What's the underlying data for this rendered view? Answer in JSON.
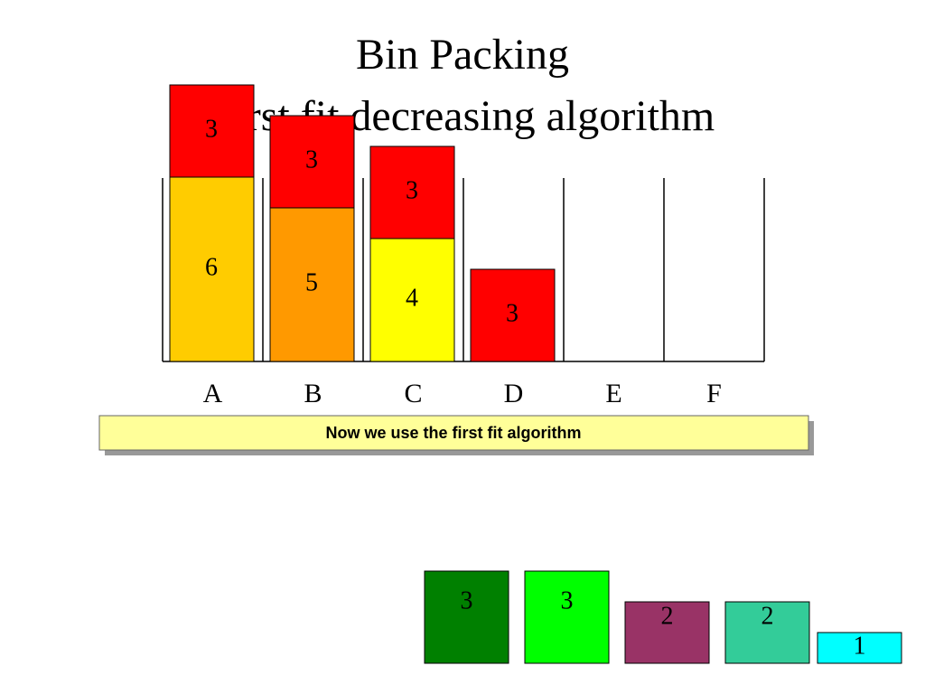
{
  "title": {
    "line1": "Bin Packing",
    "line2": "First fit decreasing algorithm"
  },
  "bins": [
    {
      "label": "A",
      "items": [
        {
          "value": 6,
          "color": "#ffcc00"
        },
        {
          "value": 3,
          "color": "#ff0000"
        }
      ]
    },
    {
      "label": "B",
      "items": [
        {
          "value": 5,
          "color": "#ff9900"
        },
        {
          "value": 3,
          "color": "#ff0000"
        }
      ]
    },
    {
      "label": "C",
      "items": [
        {
          "value": 4,
          "color": "#ffff00"
        },
        {
          "value": 3,
          "color": "#ff0000"
        }
      ]
    },
    {
      "label": "D",
      "items": [
        {
          "value": 3,
          "color": "#ff0000"
        }
      ]
    },
    {
      "label": "E",
      "items": []
    },
    {
      "label": "F",
      "items": []
    }
  ],
  "note": "Now we use the first fit algorithm",
  "remaining": [
    {
      "value": 3,
      "color": "#008000"
    },
    {
      "value": 3,
      "color": "#00ff00"
    },
    {
      "value": 2,
      "color": "#993366"
    },
    {
      "value": 2,
      "color": "#33cc99"
    },
    {
      "value": 1,
      "color": "#00ffff"
    }
  ]
}
